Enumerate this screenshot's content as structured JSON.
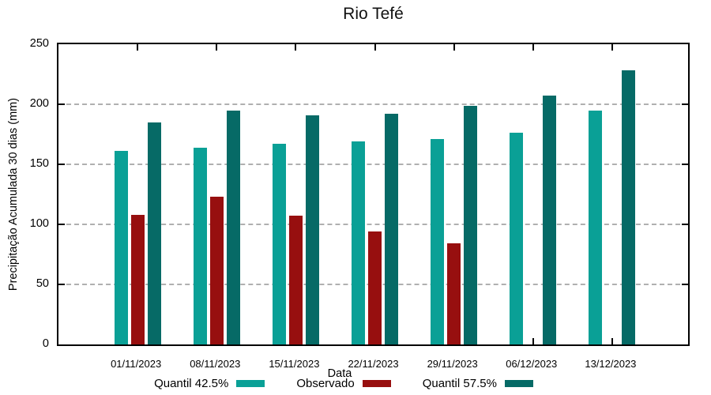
{
  "chart_data": {
    "type": "bar",
    "title": "Rio Tefé",
    "xlabel": "Data",
    "ylabel": "Precipitação Acumulada 30 dias (mm)",
    "categories": [
      "01/11/2023",
      "08/11/2023",
      "15/11/2023",
      "22/11/2023",
      "29/11/2023",
      "06/12/2023",
      "13/12/2023"
    ],
    "series": [
      {
        "name": "Quantil 42.5%",
        "color": "#0aa096",
        "values": [
          161,
          164,
          167,
          169,
          171,
          176,
          195
        ]
      },
      {
        "name": "Observado",
        "color": "#970f0f",
        "values": [
          108,
          123,
          107,
          94,
          84,
          null,
          null
        ]
      },
      {
        "name": "Quantil 57.5%",
        "color": "#066a66",
        "values": [
          185,
          195,
          191,
          192,
          199,
          207,
          228
        ]
      }
    ],
    "ylim": [
      0,
      250
    ],
    "yticks": [
      0,
      50,
      100,
      150,
      200,
      250
    ],
    "grid": true,
    "legend_position": "bottom",
    "axis_color": "#000000",
    "grid_color": "#b0b0b0"
  }
}
